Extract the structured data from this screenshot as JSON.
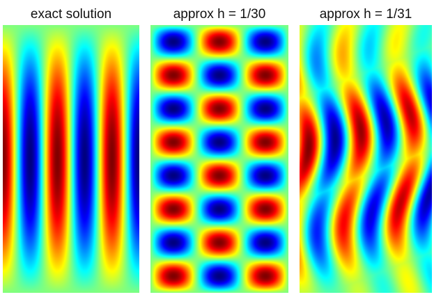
{
  "panels": [
    {
      "title": "exact solution",
      "kind": "exact"
    },
    {
      "title": "approx h = 1/30",
      "kind": "checker"
    },
    {
      "title": "approx h = 1/31",
      "kind": "wavy"
    }
  ],
  "colormap": "jet"
}
